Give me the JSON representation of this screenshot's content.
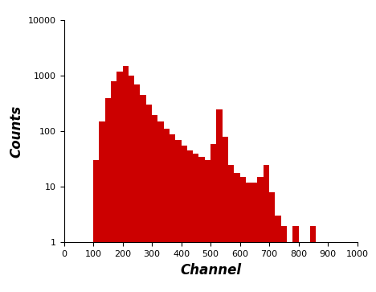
{
  "chart_data": {
    "type": "histogram",
    "x_label": "Channel",
    "y_label": "Counts",
    "bins": [
      0,
      20,
      40,
      60,
      80,
      100,
      120,
      140,
      160,
      180,
      200,
      220,
      240,
      260,
      280,
      300,
      320,
      340,
      360,
      380,
      400,
      420,
      440,
      460,
      480,
      500,
      520,
      540,
      560,
      580,
      600,
      620,
      640,
      660,
      680,
      700,
      720,
      740,
      760,
      780,
      800,
      820,
      840,
      860,
      880,
      900,
      920,
      940,
      960,
      980,
      1000
    ],
    "counts": [
      0,
      0,
      0,
      0,
      0,
      30,
      150,
      400,
      800,
      1200,
      1500,
      1000,
      700,
      450,
      300,
      200,
      150,
      110,
      90,
      70,
      55,
      45,
      40,
      35,
      30,
      60,
      250,
      80,
      25,
      18,
      15,
      12,
      12,
      15,
      25,
      8,
      3,
      2,
      1,
      2,
      1,
      1,
      2,
      1,
      1,
      1,
      1,
      0,
      0,
      0
    ],
    "color": "#cc0000",
    "log": "y",
    "xlim": [
      0,
      1000
    ],
    "xticks": [
      0,
      100,
      200,
      300,
      400,
      500,
      600,
      700,
      800,
      900,
      1000
    ],
    "ylim": [
      1,
      10000
    ],
    "yticks": [
      1,
      10,
      100,
      1000,
      10000
    ],
    "grid": false
  }
}
